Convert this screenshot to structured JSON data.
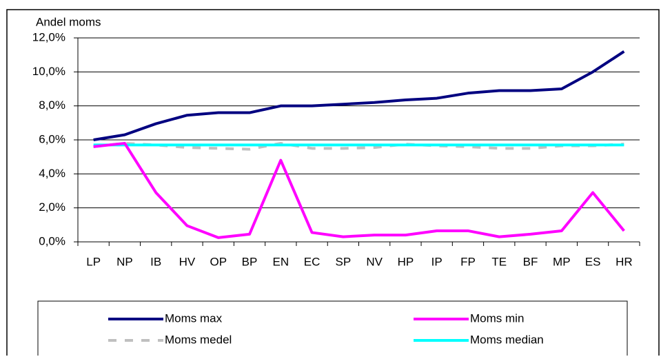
{
  "chart_data": {
    "type": "line",
    "y_axis_label": "Andel moms",
    "categories": [
      "LP",
      "NP",
      "IB",
      "HV",
      "OP",
      "BP",
      "EN",
      "EC",
      "SP",
      "NV",
      "HP",
      "IP",
      "FP",
      "TE",
      "BF",
      "MP",
      "ES",
      "HR"
    ],
    "series": [
      {
        "name": "Moms max",
        "color": "#000080",
        "dash": false,
        "values": [
          6.0,
          6.3,
          6.95,
          7.45,
          7.6,
          7.6,
          8.0,
          8.0,
          8.1,
          8.2,
          8.35,
          8.45,
          8.75,
          8.9,
          8.9,
          9.0,
          10.0,
          11.2
        ]
      },
      {
        "name": "Moms min",
        "color": "#ff00ff",
        "dash": false,
        "values": [
          5.6,
          5.8,
          2.9,
          0.95,
          0.25,
          0.45,
          4.8,
          0.55,
          0.3,
          0.4,
          0.4,
          0.65,
          0.65,
          0.3,
          0.45,
          0.65,
          2.9,
          0.65
        ]
      },
      {
        "name": "Moms medel",
        "color": "#c0c0c0",
        "dash": true,
        "values": [
          5.6,
          5.8,
          5.7,
          5.55,
          5.5,
          5.45,
          5.8,
          5.5,
          5.5,
          5.55,
          5.75,
          5.65,
          5.6,
          5.5,
          5.5,
          5.65,
          5.65,
          5.75
        ]
      },
      {
        "name": "Moms median",
        "color": "#00ffff",
        "dash": false,
        "values": [
          5.7,
          5.7,
          5.7,
          5.7,
          5.7,
          5.7,
          5.7,
          5.7,
          5.7,
          5.7,
          5.7,
          5.7,
          5.7,
          5.7,
          5.7,
          5.7,
          5.7,
          5.7
        ]
      }
    ],
    "ylim": [
      0,
      12
    ],
    "yticks": [
      {
        "value": 0,
        "label": "0,0%"
      },
      {
        "value": 2,
        "label": "2,0%"
      },
      {
        "value": 4,
        "label": "4,0%"
      },
      {
        "value": 6,
        "label": "6,0%"
      },
      {
        "value": 8,
        "label": "8,0%"
      },
      {
        "value": 10,
        "label": "10,0%"
      },
      {
        "value": 12,
        "label": "12,0%"
      }
    ],
    "grid": true,
    "legend": "bottom"
  }
}
